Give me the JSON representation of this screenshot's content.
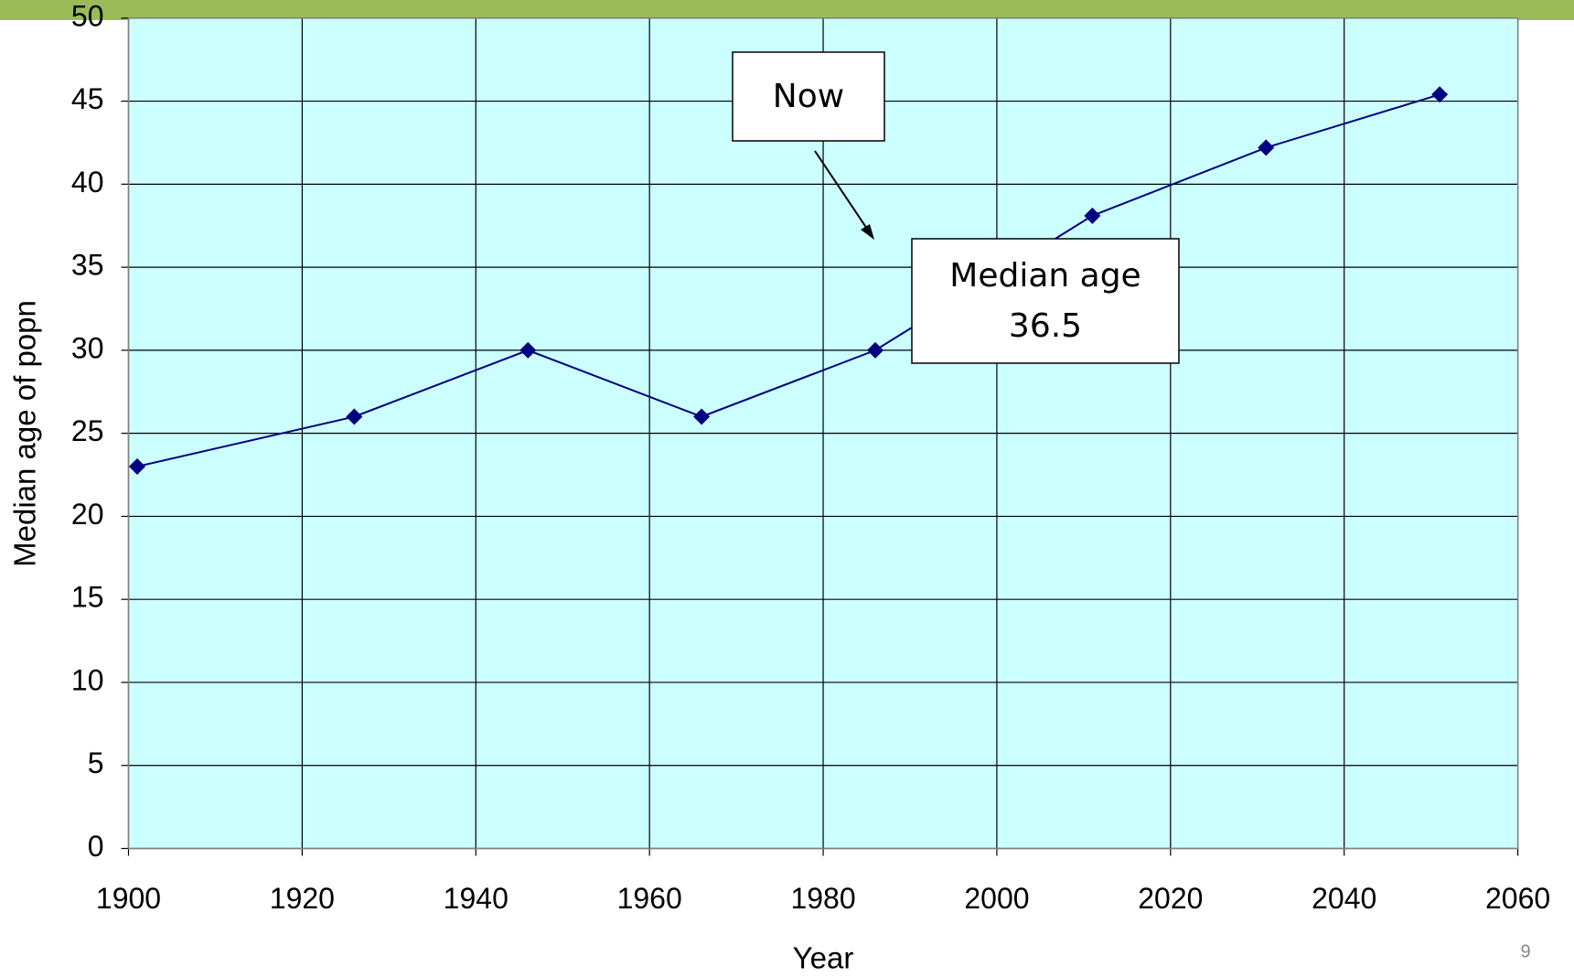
{
  "chart_data": {
    "type": "line",
    "x_label": "Year",
    "y_label": "Median age of popn",
    "x": [
      1901,
      1926,
      1946,
      1966,
      1986,
      2011,
      2031,
      2051
    ],
    "series": [
      {
        "color": "#000080",
        "values": [
          23,
          26,
          30,
          26,
          30,
          38.1,
          42.2,
          45.4
        ]
      }
    ],
    "xlim": [
      1900,
      2060
    ],
    "xticks": [
      1900,
      1920,
      1940,
      1960,
      1980,
      2000,
      2020,
      2040,
      2060
    ],
    "ylim": [
      0,
      50
    ],
    "yticks": [
      0,
      5,
      10,
      15,
      20,
      25,
      30,
      35,
      40,
      45,
      50
    ],
    "grid": true,
    "plot_background": "#ccffff",
    "annotations": [
      "Now",
      "Median age",
      "36.5"
    ],
    "page_number": "9"
  }
}
